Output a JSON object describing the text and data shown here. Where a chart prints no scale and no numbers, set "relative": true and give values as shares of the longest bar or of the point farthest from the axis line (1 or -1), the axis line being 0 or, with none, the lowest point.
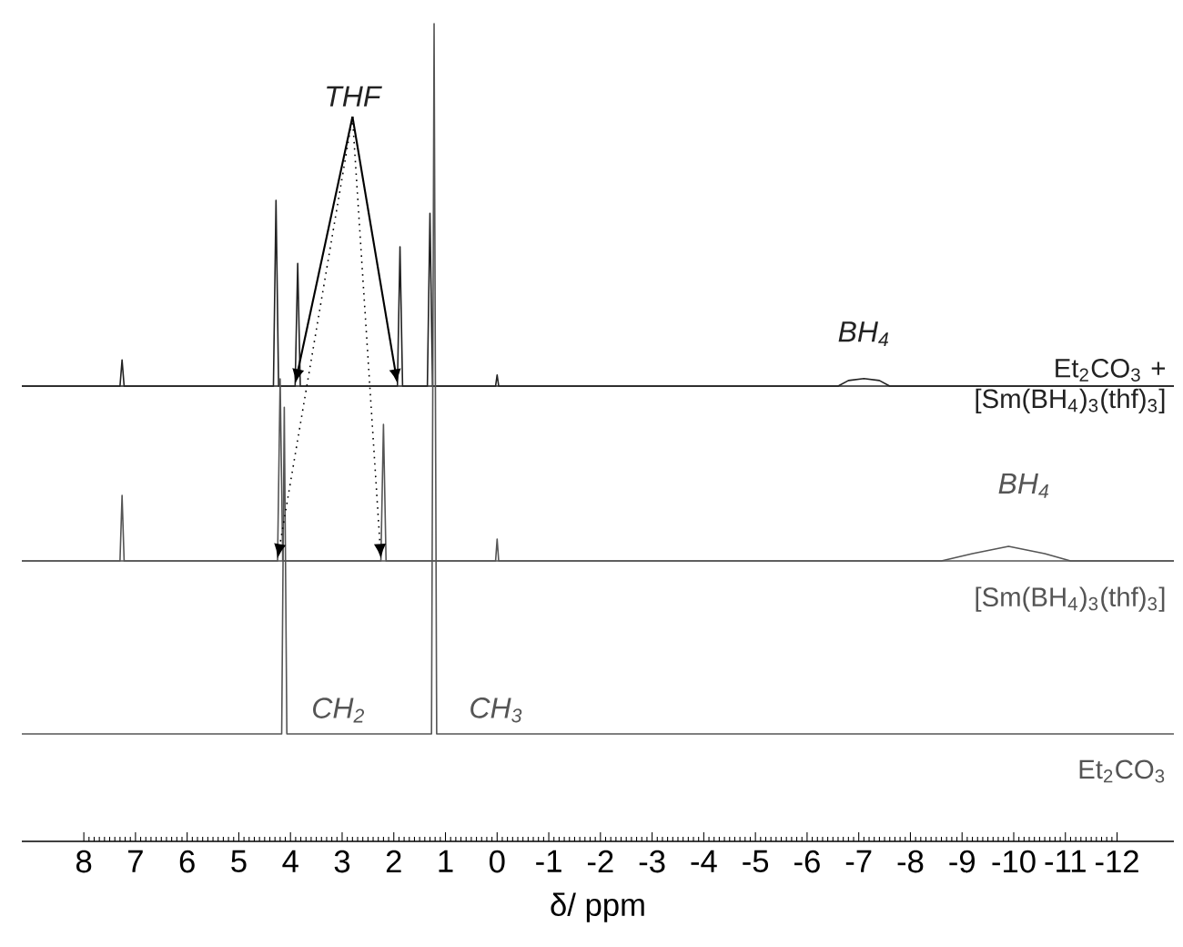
{
  "chart_data": [
    {
      "type": "line",
      "relative": true,
      "xlim": [
        9.2,
        -13.1
      ],
      "tick_labels": false,
      "annotations": [
        "THF",
        "*BH*$_{4}$"
      ],
      "series": [
        {
          "name": "Et$_{2}$CO$_{3}$ + [Sm(BH$_{4}$)$_{3}$(thf)$_{3}$]",
          "color": "#222222",
          "x": [
            9.2,
            7.3,
            7.26,
            7.22,
            4.33,
            4.28,
            4.23,
            3.91,
            3.86,
            3.81,
            1.93,
            1.88,
            1.83,
            1.35,
            1.3,
            1.25,
            0.03,
            0,
            -0.03,
            -6.6,
            -6.8,
            -7.1,
            -7.4,
            -7.6,
            -13.1
          ],
          "values": [
            0,
            0,
            0.14,
            0,
            0,
            1,
            0,
            0,
            0.66,
            0,
            0,
            0.75,
            0,
            0,
            0.93,
            0,
            0,
            0.06,
            0,
            0,
            0.03,
            0.04,
            0.03,
            0,
            0
          ]
        }
      ]
    },
    {
      "type": "line",
      "relative": true,
      "xlim": [
        9.2,
        -13.1
      ],
      "tick_labels": false,
      "annotations": [
        "*BH*$_{4}$"
      ],
      "series": [
        {
          "name": "[Sm(BH$_{4}$)$_{3}$(thf)$_{3}$]",
          "color": "#555555",
          "x": [
            9.2,
            7.3,
            7.26,
            7.22,
            4.25,
            4.2,
            4.15,
            2.25,
            2.2,
            2.15,
            0.03,
            0,
            -0.03,
            -8.6,
            -9.2,
            -9.9,
            -10.6,
            -11.1,
            -13.1
          ],
          "values": [
            0,
            0,
            0.36,
            0,
            0,
            1,
            0,
            0,
            0.75,
            0,
            0,
            0.12,
            0,
            0,
            0.04,
            0.08,
            0.04,
            0,
            0
          ]
        }
      ]
    },
    {
      "type": "line",
      "relative": true,
      "xlim": [
        9.2,
        -13.1
      ],
      "tick_labels": "x",
      "xlabel": "δ/ ppm",
      "xticks": [
        8,
        7,
        6,
        5,
        4,
        3,
        2,
        1,
        0,
        -1,
        -2,
        -3,
        -4,
        -5,
        -6,
        -7,
        -8,
        -9,
        -10,
        -11,
        -12
      ],
      "annotations": [
        "*CH*$_{2}$",
        "*CH*$_{3}$"
      ],
      "series": [
        {
          "name": "Et$_{2}$CO$_{3}$",
          "color": "#555555",
          "x": [
            9.2,
            4.17,
            4.12,
            4.07,
            1.27,
            1.22,
            1.17,
            -13.1
          ],
          "values": [
            0,
            0,
            0.46,
            0,
            0,
            1,
            0,
            0
          ]
        }
      ]
    }
  ]
}
